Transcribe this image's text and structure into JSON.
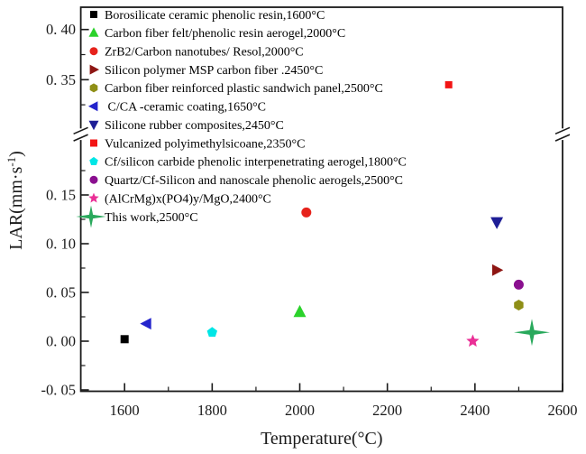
{
  "chart_data": {
    "type": "scatter",
    "title": "",
    "xlabel": "Temperature(°C)",
    "ylabel": {
      "pre": "LAR(mm·s",
      "sup": "-1",
      "post": ")"
    },
    "grid": false,
    "legend_position": "upper-left-inside",
    "axis_color": "#1a1a1a",
    "x_axis": {
      "min": 1500,
      "max": 2600,
      "major_ticks": [
        1600,
        1800,
        2000,
        2200,
        2400,
        2600
      ],
      "major_tick_labels": [
        "1600",
        "1800",
        "2000",
        "2200",
        "2400",
        "2600"
      ],
      "minor_ticks": [
        1700,
        1900,
        2100,
        2300,
        2500
      ]
    },
    "y_axis": {
      "broken": true,
      "lower_section": {
        "range": [
          -0.0515,
          0.2035
        ],
        "major_ticks": [
          -0.05,
          0.0,
          0.05,
          0.1,
          0.15
        ],
        "major_tick_labels": [
          "-0. 05",
          "0. 00",
          "0. 05",
          "0. 10",
          "0. 15"
        ],
        "minor_ticks": [
          -0.025,
          0.025,
          0.075,
          0.125,
          0.175
        ]
      },
      "upper_section": {
        "range": [
          0.3,
          0.422
        ],
        "major_ticks": [
          0.35,
          0.4
        ],
        "major_tick_labels": [
          "0. 35",
          "0. 40"
        ],
        "minor_ticks": [
          0.325,
          0.375
        ]
      }
    },
    "series": [
      {
        "label": "Borosilicate ceramic phenolic resin,1600°C",
        "marker": "square",
        "color": "#000000",
        "x": 1600,
        "y": 0.002,
        "panel": "lower",
        "size": 4.5,
        "legend_size": 4
      },
      {
        "label": "Carbon fiber felt/phenolic resin aerogel,2000°C",
        "marker": "triangle-up",
        "color": "#2bd22b",
        "x": 2000,
        "y": 0.03,
        "panel": "lower",
        "size": 7,
        "legend_size": 5.5
      },
      {
        "label": "ZrB2/Carbon nanotubes/ Resol,2000°C",
        "marker": "circle",
        "color": "#e6231c",
        "x": 2015,
        "y": 0.132,
        "panel": "lower",
        "size": 5.5,
        "legend_size": 4.5
      },
      {
        "label": "Silicon polymer MSP carbon fiber .2450°C",
        "marker": "triangle-right",
        "color": "#8e1613",
        "x": 2450,
        "y": 0.073,
        "panel": "lower",
        "size": 6.5,
        "legend_size": 5.5
      },
      {
        "label": "Carbon fiber reinforced plastic sandwich panel,2500°C",
        "marker": "hexagon",
        "color": "#8f8f17",
        "x": 2500,
        "y": 0.037,
        "panel": "lower",
        "size": 6,
        "legend_size": 5
      },
      {
        "label": " C/CA -ceramic coating,1650°C",
        "marker": "triangle-left",
        "color": "#2424cc",
        "x": 1650,
        "y": 0.018,
        "panel": "lower",
        "size": 6.5,
        "legend_size": 5.5
      },
      {
        "label": "Silicone rubber composites,2450°C",
        "marker": "triangle-down",
        "color": "#1e1e96",
        "x": 2450,
        "y": 0.122,
        "panel": "lower",
        "size": 7,
        "legend_size": 5.5
      },
      {
        "label": "Vulcanized polyimethylsicoane,2350°C",
        "marker": "square",
        "color": "#f21414",
        "x": 2340,
        "y": 0.345,
        "panel": "upper",
        "size": 4,
        "legend_size": 4
      },
      {
        "label": "Cf/silicon carbide phenolic interpenetrating aerogel,1800°C",
        "marker": "pentagon",
        "color": "#00e6e6",
        "x": 1800,
        "y": 0.009,
        "panel": "lower",
        "size": 6,
        "legend_size": 5
      },
      {
        "label": "Quartz/Cf-Silicon and nanoscale phenolic aerogels,2500°C",
        "marker": "circle",
        "color": "#8a0f8f",
        "x": 2500,
        "y": 0.058,
        "panel": "lower",
        "size": 5.5,
        "legend_size": 4.5
      },
      {
        "label": "(AlCrMg)x(PO4)y/MgO,2400°C",
        "marker": "star5",
        "color": "#ea2f96",
        "x": 2395,
        "y": 0.0,
        "panel": "lower",
        "size": 7.5,
        "legend_size": 6
      },
      {
        "label": "This work,2500°C",
        "marker": "star4",
        "color": "#29a95c",
        "x": 2530,
        "y": 0.009,
        "panel": "lower",
        "size": 15,
        "legend_size": 12.5
      }
    ]
  }
}
